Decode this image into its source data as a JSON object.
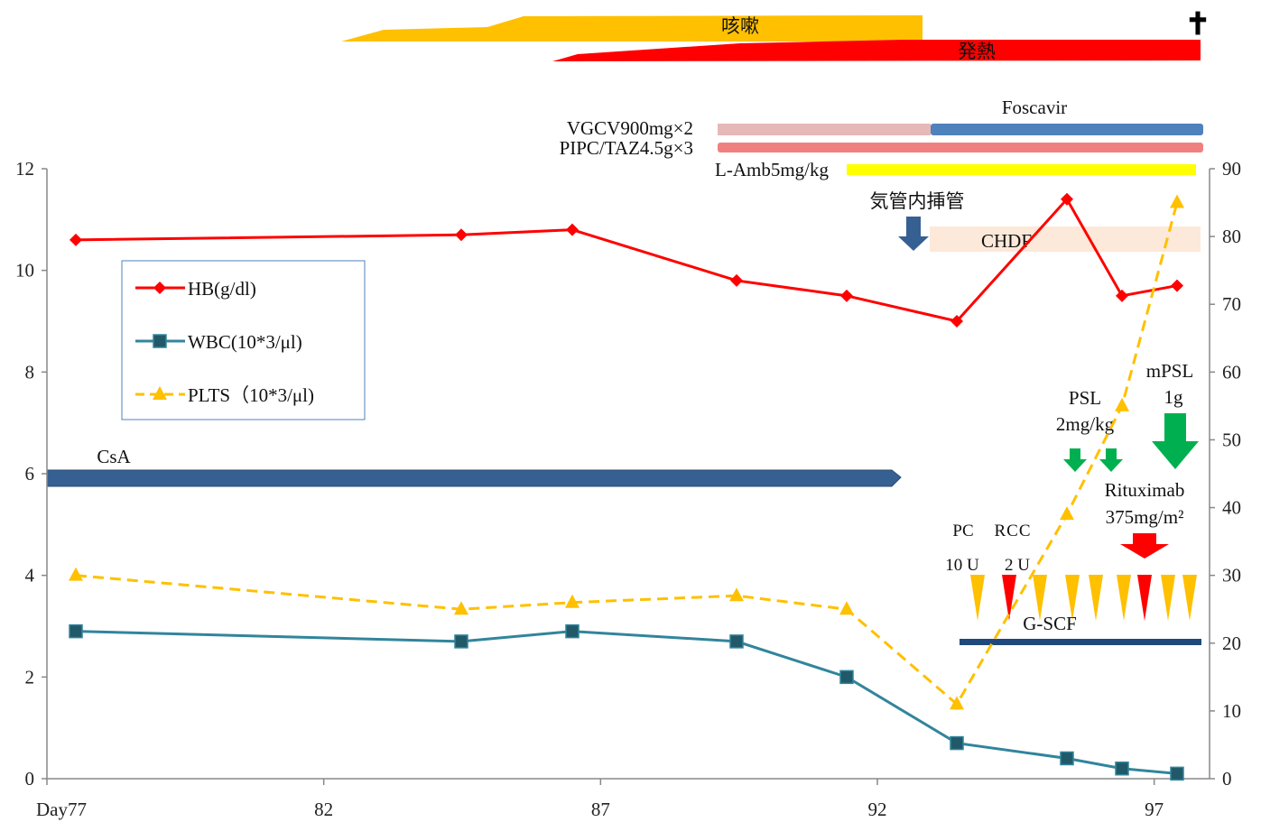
{
  "chart_data": {
    "type": "line",
    "x_categories": [
      "Day77",
      "82",
      "87",
      "92",
      "97"
    ],
    "x_range": [
      77,
      98
    ],
    "y_left": {
      "ylim": [
        0,
        12
      ],
      "ticks": [
        "0",
        "2",
        "4",
        "6",
        "8",
        "10",
        "12"
      ]
    },
    "y_right": {
      "ylim": [
        0,
        90
      ],
      "ticks": [
        "0",
        "10",
        "20",
        "30",
        "40",
        "50",
        "60",
        "70",
        "80",
        "90"
      ]
    },
    "series": [
      {
        "name": "HB(g/dl)",
        "axis": "left",
        "color": "#ff0000",
        "marker": "diamond",
        "dash": false,
        "x": [
          77,
          84,
          86,
          89,
          91,
          93,
          95,
          96,
          97
        ],
        "values": [
          10.6,
          10.7,
          10.8,
          9.8,
          9.5,
          9.0,
          11.4,
          9.5,
          9.7
        ]
      },
      {
        "name": "WBC(10*3/μl)",
        "axis": "left",
        "color": "#31859c",
        "marker": "square",
        "dash": false,
        "x": [
          77,
          84,
          86,
          89,
          91,
          93,
          95,
          96,
          97
        ],
        "values": [
          2.9,
          2.7,
          2.9,
          2.7,
          2.0,
          0.7,
          0.4,
          0.2,
          0.1
        ]
      },
      {
        "name": "PLTS（10*3/μl)",
        "axis": "right",
        "color": "#ffc000",
        "marker": "triangle",
        "dash": true,
        "x": [
          77,
          84,
          86,
          89,
          91,
          93,
          95,
          96,
          97
        ],
        "values": [
          30,
          25,
          26,
          27,
          25,
          11,
          39,
          55,
          85
        ]
      }
    ],
    "legend_position": "left-middle",
    "annotations": {
      "cough": "咳嗽",
      "fever": "発熱",
      "death": "✝",
      "foscavir": "Foscavir",
      "vgcv": "VGCV900mg×2",
      "pipc": "PIPC/TAZ4.5g×3",
      "lamb": "L-Amb5mg/kg",
      "intubation": "気管内挿管",
      "chdf": "CHDF",
      "csa": "CsA",
      "psl_line1": "PSL",
      "psl_line2": "2mg/kg",
      "mpsl_line1": "mPSL",
      "mpsl_line2": "1g",
      "rituximab_line1": "Rituximab",
      "rituximab_line2": "375mg/m²",
      "pc": "PC",
      "rcc": "RCC",
      "pc_units": "10 U",
      "rcc_units": "2 U",
      "gcsf": "G-SCF"
    },
    "colors": {
      "cough": "#ffc000",
      "fever": "#ff0000",
      "vgcv": "#e6b9b8",
      "foscavir": "#4f81bd",
      "pipc": "#f08080",
      "lamb": "#ffff00",
      "chdf": "#fde9d9",
      "csa": "#366092",
      "down_arrow_blue": "#366092",
      "down_arrow_green": "#00b050",
      "down_arrow_red": "#ff0000",
      "platelet_transfusion": "#ffc000",
      "rbc_transfusion": "#ff0000",
      "gcsf": "#1f497d"
    }
  }
}
